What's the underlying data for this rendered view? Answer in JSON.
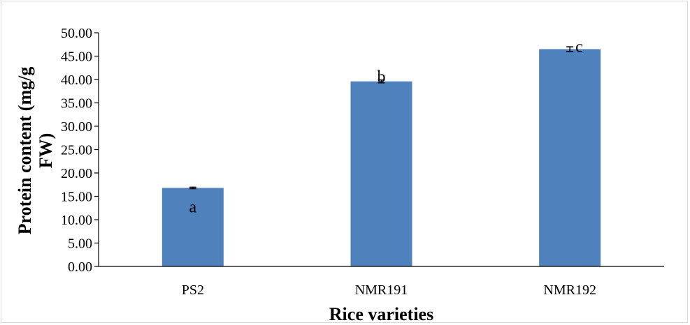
{
  "chart_data": {
    "type": "bar",
    "categories": [
      "PS2",
      "NMR191",
      "NMR192"
    ],
    "values": [
      16.8,
      39.6,
      46.5
    ],
    "error": [
      0.15,
      0.3,
      0.5
    ],
    "significance_labels": [
      "a",
      "b",
      "c"
    ],
    "title": "",
    "xlabel": "Rice varieties",
    "ylabel": "Protein content (mg/g FW)",
    "ylim": [
      0,
      50
    ],
    "yticks": [
      0,
      5,
      10,
      15,
      20,
      25,
      30,
      35,
      40,
      45,
      50
    ],
    "ytick_labels": [
      "0.00",
      "5.00",
      "10.00",
      "15.00",
      "20.00",
      "25.00",
      "30.00",
      "35.00",
      "40.00",
      "45.00",
      "50.00"
    ],
    "bar_color": "#4f81bd",
    "axis_color": "#000000",
    "grid": false,
    "legend": "none"
  }
}
